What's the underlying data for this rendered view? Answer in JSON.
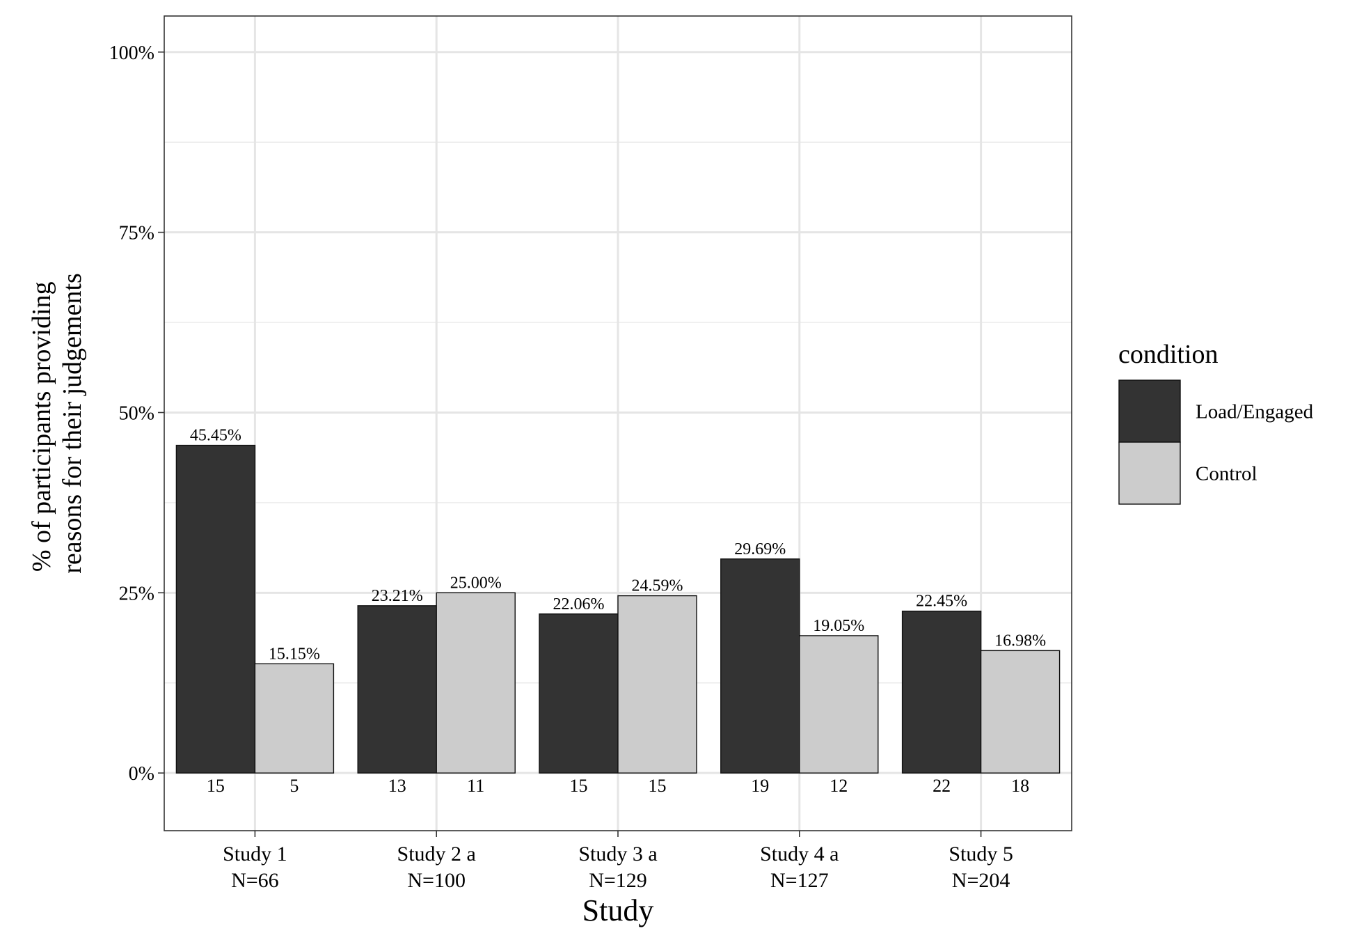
{
  "chart_data": {
    "type": "bar",
    "xlabel": "Study",
    "ylabel": [
      "% of participants providing",
      "reasons for their judgements"
    ],
    "ylim": [
      -8,
      105
    ],
    "yticks": [
      0,
      25,
      50,
      75,
      100
    ],
    "ytick_labels": [
      "0%",
      "25%",
      "50%",
      "75%",
      "100%"
    ],
    "grid": true,
    "legend_position": "right",
    "legend_title": "condition",
    "categories": [
      {
        "line1": "Study 1",
        "line2": "N=66"
      },
      {
        "line1": "Study 2 a",
        "line2": "N=100"
      },
      {
        "line1": "Study 3 a",
        "line2": "N=129"
      },
      {
        "line1": "Study 4 a",
        "line2": "N=127"
      },
      {
        "line1": "Study 5",
        "line2": "N=204"
      }
    ],
    "series": [
      {
        "name": "Load/Engaged",
        "color": "#333333",
        "values": [
          45.45,
          23.21,
          22.06,
          29.69,
          22.45
        ],
        "value_labels": [
          "45.45%",
          "23.21%",
          "22.06%",
          "29.69%",
          "22.45%"
        ],
        "counts": [
          "15",
          "13",
          "15",
          "19",
          "22"
        ]
      },
      {
        "name": "Control",
        "color": "#cccccc",
        "values": [
          15.15,
          25.0,
          24.59,
          19.05,
          16.98
        ],
        "value_labels": [
          "15.15%",
          "25.00%",
          "24.59%",
          "19.05%",
          "16.98%"
        ],
        "counts": [
          "5",
          "11",
          "15",
          "12",
          "18"
        ]
      }
    ]
  }
}
